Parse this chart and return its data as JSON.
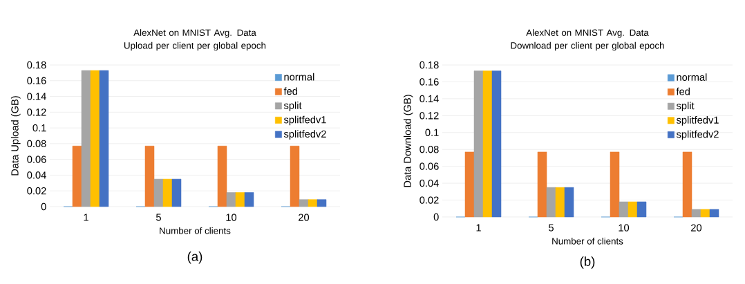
{
  "chart_data": [
    {
      "type": "bar",
      "title": "AlexNet on MNIST Avg. Data Upload per client per global epoch",
      "xlabel": "Number of clients",
      "ylabel": "Data Upload (GB)",
      "categories": [
        "1",
        "5",
        "10",
        "20"
      ],
      "series": [
        {
          "name": "normal",
          "color": "#5b9bd5",
          "values": [
            0,
            0,
            0,
            0
          ]
        },
        {
          "name": "fed",
          "color": "#ed7d31",
          "values": [
            0.077,
            0.077,
            0.077,
            0.077
          ]
        },
        {
          "name": "split",
          "color": "#a5a5a5",
          "values": [
            0.173,
            0.035,
            0.018,
            0.009
          ]
        },
        {
          "name": "splitfedv1",
          "color": "#ffc000",
          "values": [
            0.173,
            0.035,
            0.018,
            0.009
          ]
        },
        {
          "name": "splitfedv2",
          "color": "#4472c4",
          "values": [
            0.173,
            0.035,
            0.018,
            0.009
          ]
        }
      ],
      "ylim": [
        0,
        0.18
      ],
      "yticks": [
        0,
        0.02,
        0.04,
        0.06,
        0.08,
        0.1,
        0.12,
        0.14,
        0.16,
        0.18
      ],
      "grid": "y",
      "legend": "top right",
      "annotations": [
        "(a)"
      ]
    },
    {
      "type": "bar",
      "title": "AlexNet on MNIST Avg. Data Download per client per global epoch",
      "xlabel": "Number of clients",
      "ylabel": "Data Download (GB)",
      "categories": [
        "1",
        "5",
        "10",
        "20"
      ],
      "series": [
        {
          "name": "normal",
          "color": "#5b9bd5",
          "values": [
            0,
            0,
            0,
            0
          ]
        },
        {
          "name": "fed",
          "color": "#ed7d31",
          "values": [
            0.077,
            0.077,
            0.077,
            0.077
          ]
        },
        {
          "name": "split",
          "color": "#a5a5a5",
          "values": [
            0.173,
            0.035,
            0.018,
            0.009
          ]
        },
        {
          "name": "splitfedv1",
          "color": "#ffc000",
          "values": [
            0.173,
            0.035,
            0.018,
            0.009
          ]
        },
        {
          "name": "splitfedv2",
          "color": "#4472c4",
          "values": [
            0.173,
            0.035,
            0.018,
            0.009
          ]
        }
      ],
      "ylim": [
        0,
        0.18
      ],
      "yticks": [
        0,
        0.02,
        0.04,
        0.06,
        0.08,
        0.1,
        0.12,
        0.14,
        0.16,
        0.18
      ],
      "grid": "y",
      "legend": "top right",
      "annotations": [
        "(b)"
      ]
    }
  ]
}
